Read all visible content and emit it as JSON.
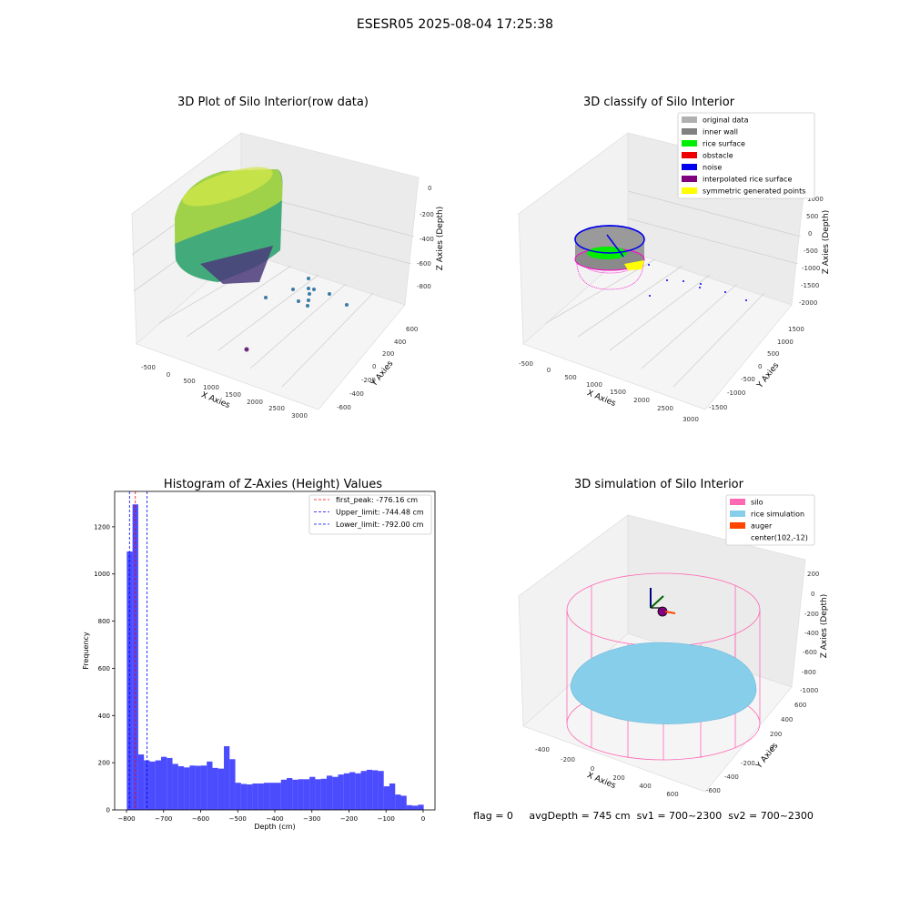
{
  "suptitle": "ESESR05 2025-08-04 17:25:38",
  "panels": {
    "raw": {
      "title": "3D Plot of Silo Interior(row data)",
      "xlabel": "X Axies",
      "ylabel": "Y Axies",
      "zlabel": "Z Axies (Depth)",
      "xticks": [
        "-500",
        "0",
        "500",
        "1000",
        "1500",
        "2000",
        "2500",
        "3000"
      ],
      "yticks": [
        "-600",
        "-400",
        "-200",
        "0",
        "200",
        "400",
        "600"
      ],
      "zticks": [
        "0",
        "-200",
        "-400",
        "-600",
        "-800"
      ]
    },
    "classify": {
      "title": "3D classify of Silo Interior",
      "xlabel": "X Axies",
      "ylabel": "Y Axies",
      "zlabel": "Z Axies (Depth)",
      "xticks": [
        "-500",
        "0",
        "500",
        "1000",
        "1500",
        "2000",
        "2500",
        "3000"
      ],
      "yticks": [
        "-1500",
        "-1000",
        "-500",
        "0",
        "500",
        "1000",
        "1500"
      ],
      "zticks": [
        "1000",
        "500",
        "0",
        "-500",
        "-1000",
        "-1500",
        "-2000"
      ],
      "legend": [
        {
          "label": "original data",
          "color": "#b0b0b0"
        },
        {
          "label": "inner wall",
          "color": "#808080"
        },
        {
          "label": "rice surface",
          "color": "#00ee00"
        },
        {
          "label": "obstacle",
          "color": "#ee0000"
        },
        {
          "label": "noise",
          "color": "#0000ee"
        },
        {
          "label": "interpolated rice surface",
          "color": "#800080"
        },
        {
          "label": "symmetric generated points",
          "color": "#ffff00"
        }
      ]
    },
    "simulation": {
      "title": "3D simulation of Silo Interior",
      "xlabel": "X Axies",
      "ylabel": "Y Axies",
      "zlabel": "Z Axies (Depth)",
      "xticks": [
        "-400",
        "-200",
        "0",
        "200",
        "400",
        "600"
      ],
      "yticks": [
        "-600",
        "-400",
        "-200",
        "0",
        "200",
        "400",
        "600"
      ],
      "zticks": [
        "200",
        "0",
        "-200",
        "-400",
        "-600",
        "-800",
        "-1000"
      ],
      "legend": [
        {
          "label": "silo",
          "color": "#ff69b4"
        },
        {
          "label": "rice simulation",
          "color": "#87ceeb"
        },
        {
          "label": "auger",
          "color": "#ff4500"
        },
        {
          "label": "center(102,-12)",
          "color": "#ffffff"
        }
      ],
      "status": "flag = 0     avgDepth = 745 cm  sv1 = 700~2300  sv2 = 700~2300"
    }
  },
  "chart_data": {
    "type": "bar",
    "title": "Histogram of Z-Axies (Height) Values",
    "xlabel": "Depth (cm)",
    "ylabel": "Frequency",
    "xlim": [
      -832,
      32
    ],
    "ylim": [
      0,
      1350
    ],
    "xticks": [
      -800,
      -700,
      -600,
      -500,
      -400,
      -300,
      -200,
      -100,
      0
    ],
    "yticks": [
      0,
      200,
      400,
      600,
      800,
      1000,
      1200
    ],
    "bin_edges": [
      -799.2,
      -783.8,
      -768.4,
      -753.0,
      -737.6,
      -722.2,
      -706.8,
      -691.4,
      -676.0,
      -660.6,
      -645.2,
      -629.8,
      -614.4,
      -599.0,
      -583.6,
      -568.2,
      -552.8,
      -537.4,
      -522.0,
      -506.6,
      -491.2,
      -475.8,
      -460.4,
      -445.0,
      -429.6,
      -414.2,
      -398.8,
      -383.4,
      -368.0,
      -352.6,
      -337.2,
      -321.8,
      -306.4,
      -291.0,
      -275.6,
      -260.2,
      -244.8,
      -229.4,
      -214.0,
      -198.6,
      -183.2,
      -167.8,
      -152.4,
      -137.0,
      -121.6,
      -106.2,
      -90.8,
      -75.4,
      -60.0,
      -44.6,
      -29.2,
      -13.8,
      1.6
    ],
    "counts": [
      1095,
      1295,
      235,
      210,
      205,
      210,
      225,
      220,
      195,
      185,
      180,
      188,
      187,
      188,
      205,
      178,
      175,
      270,
      215,
      115,
      110,
      108,
      112,
      112,
      115,
      115,
      115,
      128,
      135,
      128,
      130,
      130,
      140,
      130,
      132,
      145,
      140,
      150,
      155,
      160,
      155,
      165,
      170,
      168,
      165,
      100,
      112,
      65,
      60,
      20,
      18,
      22
    ],
    "bar_color": "#0000ff",
    "lines": [
      {
        "label": "first_peak: -776.16 cm",
        "x": -776.16,
        "color": "#ff0000"
      },
      {
        "label": "Upper_limit: -744.48 cm",
        "x": -744.48,
        "color": "#0000ff"
      },
      {
        "label": "Lower_limit: -792.00 cm",
        "x": -792.0,
        "color": "#0000ff"
      }
    ]
  }
}
